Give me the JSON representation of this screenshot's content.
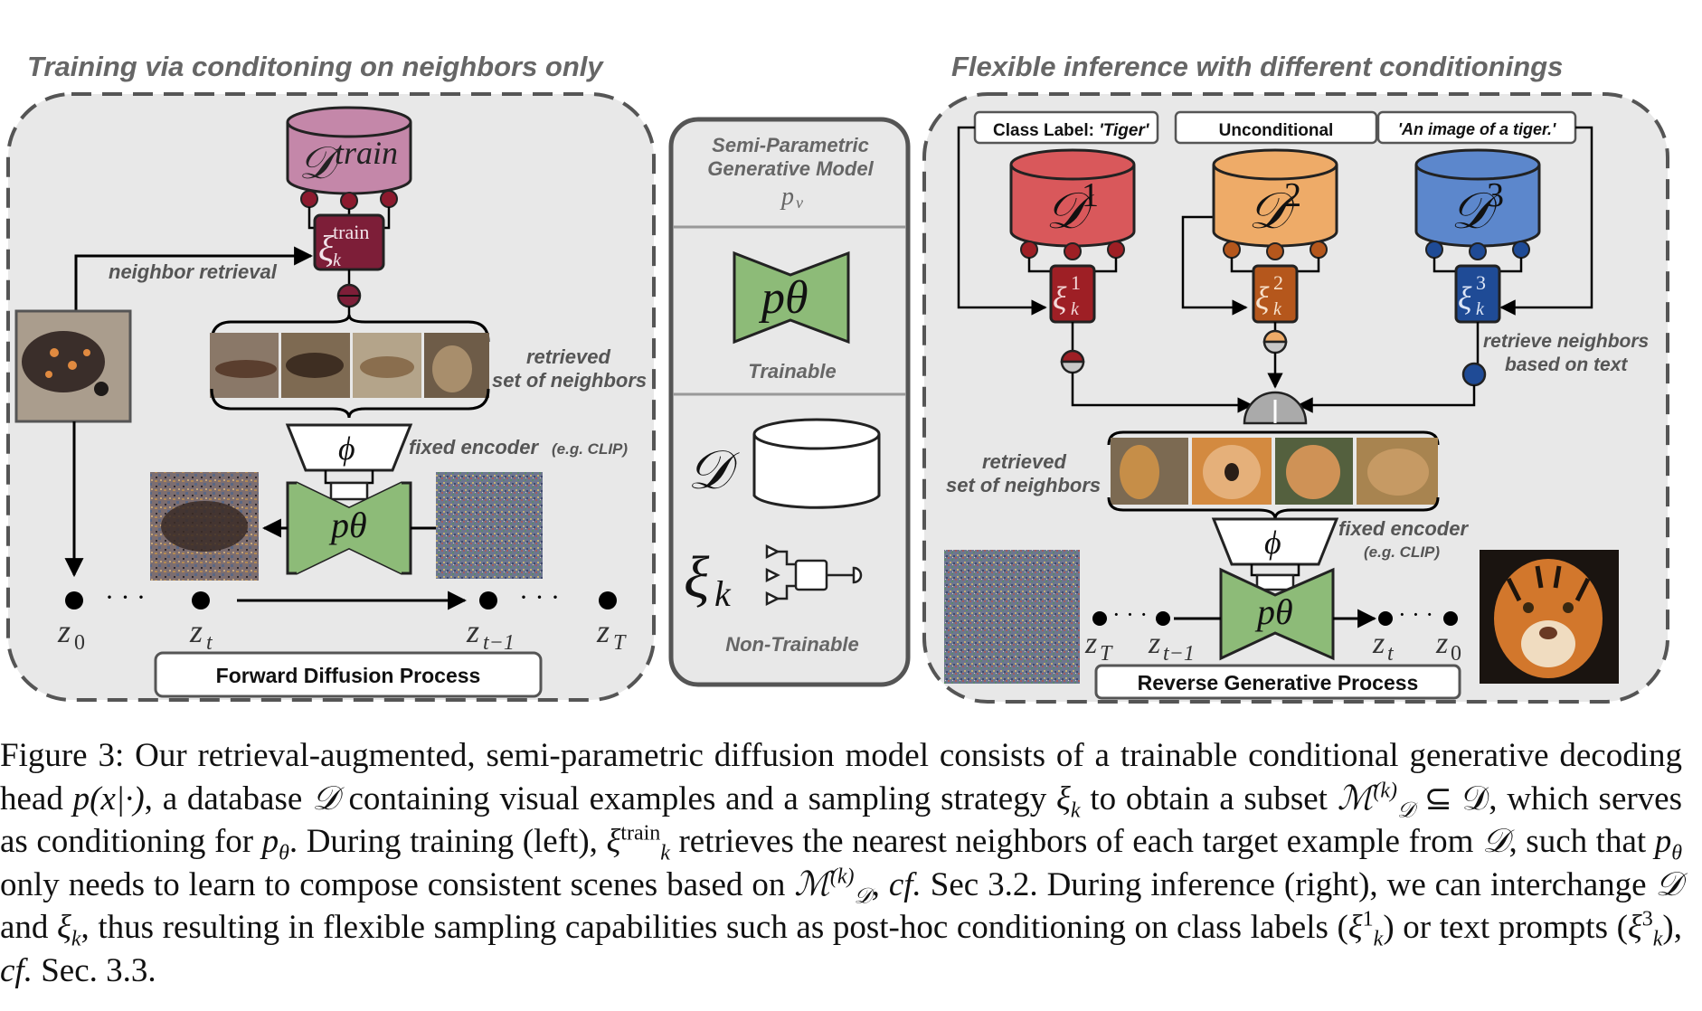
{
  "figure": {
    "left_panel": {
      "title": "Training via conditoning on neighbors only",
      "db_label": "𝒟",
      "db_sup": "train",
      "sampler_label": "ξ",
      "sampler_sub": "k",
      "sampler_sup": "train",
      "neighbor_retrieval": "neighbor retrieval",
      "retrieved_line1": "retrieved",
      "retrieved_line2": "set of neighbors",
      "encoder_symbol": "ϕ",
      "encoder_label": "fixed encoder",
      "encoder_example": "(e.g. CLIP)",
      "model_symbol": "pθ",
      "nodes": [
        "z",
        "z",
        "z",
        "z"
      ],
      "node_subs": [
        "0",
        "t",
        "t−1",
        "T"
      ],
      "dots": "· · ·",
      "process_label": "Forward Diffusion Process"
    },
    "middle_panel": {
      "title_line1": "Semi-Parametric",
      "title_line2": "Generative Model",
      "title_symbol": "p",
      "title_symbol_sub": "v",
      "model_symbol": "pθ",
      "trainable_label": "Trainable",
      "db_symbol": "𝒟",
      "sampler_symbol": "ξ",
      "sampler_sub": "k",
      "nontrainable_label": "Non-Trainable"
    },
    "right_panel": {
      "title": "Flexible inference with different conditionings",
      "cond_labels": [
        "Class Label: ",
        "Unconditional",
        "'An image of a tiger.'"
      ],
      "cond_label1_italic": "'Tiger'",
      "dbs": [
        "𝒟",
        "𝒟",
        "𝒟"
      ],
      "db_sups": [
        "1",
        "2",
        "3"
      ],
      "samplers": [
        "ξ",
        "ξ",
        "ξ"
      ],
      "sampler_sups": [
        "1",
        "2",
        "3"
      ],
      "sampler_sub": "k",
      "retrieve_text_line1": "retrieve neighbors",
      "retrieve_text_line2": "based on text",
      "retrieved_line1": "retrieved",
      "retrieved_line2": "set of neighbors",
      "encoder_symbol": "ϕ",
      "encoder_label": "fixed encoder",
      "encoder_example": "(e.g. CLIP)",
      "model_symbol": "pθ",
      "nodes": [
        "z",
        "z",
        "z",
        "z"
      ],
      "node_subs": [
        "T",
        "t−1",
        "t",
        "0"
      ],
      "dots": "· · ·",
      "process_label": "Reverse Generative Process"
    },
    "colors": {
      "panel_bg": "#e8e8e8",
      "train_db": "#c487a9",
      "train_sampler": "#7d1e38",
      "model_green": "#8dbb78",
      "db1": "#d9585b",
      "db2": "#eeab68",
      "db3": "#5c87cc",
      "sampler1": "#9e1f25",
      "sampler2": "#b5571c",
      "sampler3": "#1f4b96"
    }
  },
  "caption": {
    "lead": "Figure 3:  Our retrieval-augmented, semi-parametric diffusion model consists of a trainable conditional generative decoding head ",
    "t1": "p(x|·)",
    "t2": ", a database ",
    "t3": "𝒟",
    "t4": " containing visual examples and a sampling strategy ",
    "t5": "ξ",
    "t5s": "k",
    "t6": " to obtain a subset ",
    "t7": "ℳ",
    "t7sup": "(k)",
    "t7sub": "𝒟",
    "t8": " ⊆ 𝒟, which serves as conditioning for ",
    "t9": "p",
    "t9s": "θ",
    "t10": ". During training (left), ",
    "t11": "ξ",
    "t11sup": "train",
    "t11sub": "k",
    "t12": " retrieves the nearest neighbors of each target example from ",
    "t13": "𝒟",
    "t14": ", such that ",
    "t15": "p",
    "t15s": "θ",
    "t16": " only needs to learn to compose consistent scenes based on ",
    "t17": "ℳ",
    "t17sup": "(k)",
    "t17sub": "𝒟",
    "t18": ", ",
    "t19": "cf.",
    "t20": " Sec 3.2. During inference (right), we can interchange ",
    "t21": "𝒟",
    "t22": " and ",
    "t23": "ξ",
    "t23s": "k",
    "t24": ", thus resulting in flexible sampling capabilities such as post-hoc conditioning on class labels (",
    "t25": "ξ",
    "t25sup": "1",
    "t25sub": "k",
    "t26": ") or text prompts (",
    "t27": "ξ",
    "t27sup": "3",
    "t27sub": "k",
    "t28": "), ",
    "t29": "cf.",
    "t30": " Sec. 3.3."
  }
}
